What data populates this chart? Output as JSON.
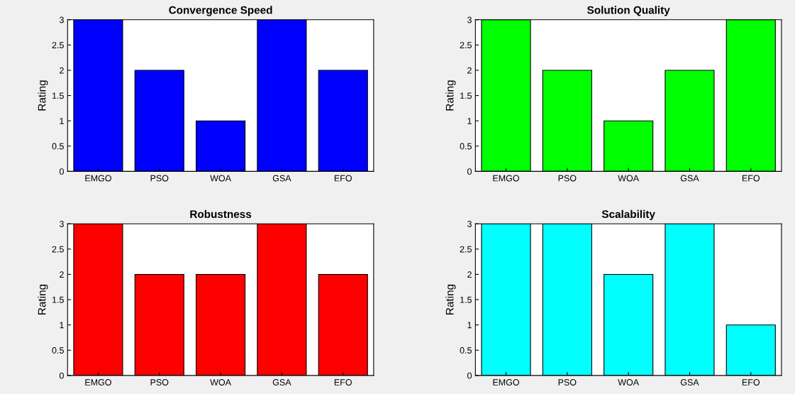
{
  "chart_data": [
    {
      "type": "bar",
      "title": "Convergence Speed",
      "ylabel": "Rating",
      "categories": [
        "EMGO",
        "PSO",
        "WOA",
        "GSA",
        "EFO"
      ],
      "values": [
        3,
        2,
        1,
        3,
        2
      ],
      "color": "#0000ff",
      "ylim": [
        0,
        3
      ],
      "yticks": [
        0,
        0.5,
        1,
        1.5,
        2,
        2.5,
        3
      ],
      "grid": false
    },
    {
      "type": "bar",
      "title": "Solution Quality",
      "ylabel": "Rating",
      "categories": [
        "EMGO",
        "PSO",
        "WOA",
        "GSA",
        "EFO"
      ],
      "values": [
        3,
        2,
        1,
        2,
        3
      ],
      "color": "#00ff00",
      "ylim": [
        0,
        3
      ],
      "yticks": [
        0,
        0.5,
        1,
        1.5,
        2,
        2.5,
        3
      ],
      "grid": false
    },
    {
      "type": "bar",
      "title": "Robustness",
      "ylabel": "Rating",
      "categories": [
        "EMGO",
        "PSO",
        "WOA",
        "GSA",
        "EFO"
      ],
      "values": [
        3,
        2,
        2,
        3,
        2
      ],
      "color": "#ff0000",
      "ylim": [
        0,
        3
      ],
      "yticks": [
        0,
        0.5,
        1,
        1.5,
        2,
        2.5,
        3
      ],
      "grid": false
    },
    {
      "type": "bar",
      "title": "Scalability",
      "ylabel": "Rating",
      "categories": [
        "EMGO",
        "PSO",
        "WOA",
        "GSA",
        "EFO"
      ],
      "values": [
        3,
        3,
        2,
        3,
        1
      ],
      "color": "#00ffff",
      "ylim": [
        0,
        3
      ],
      "yticks": [
        0,
        0.5,
        1,
        1.5,
        2,
        2.5,
        3
      ],
      "grid": false
    }
  ]
}
